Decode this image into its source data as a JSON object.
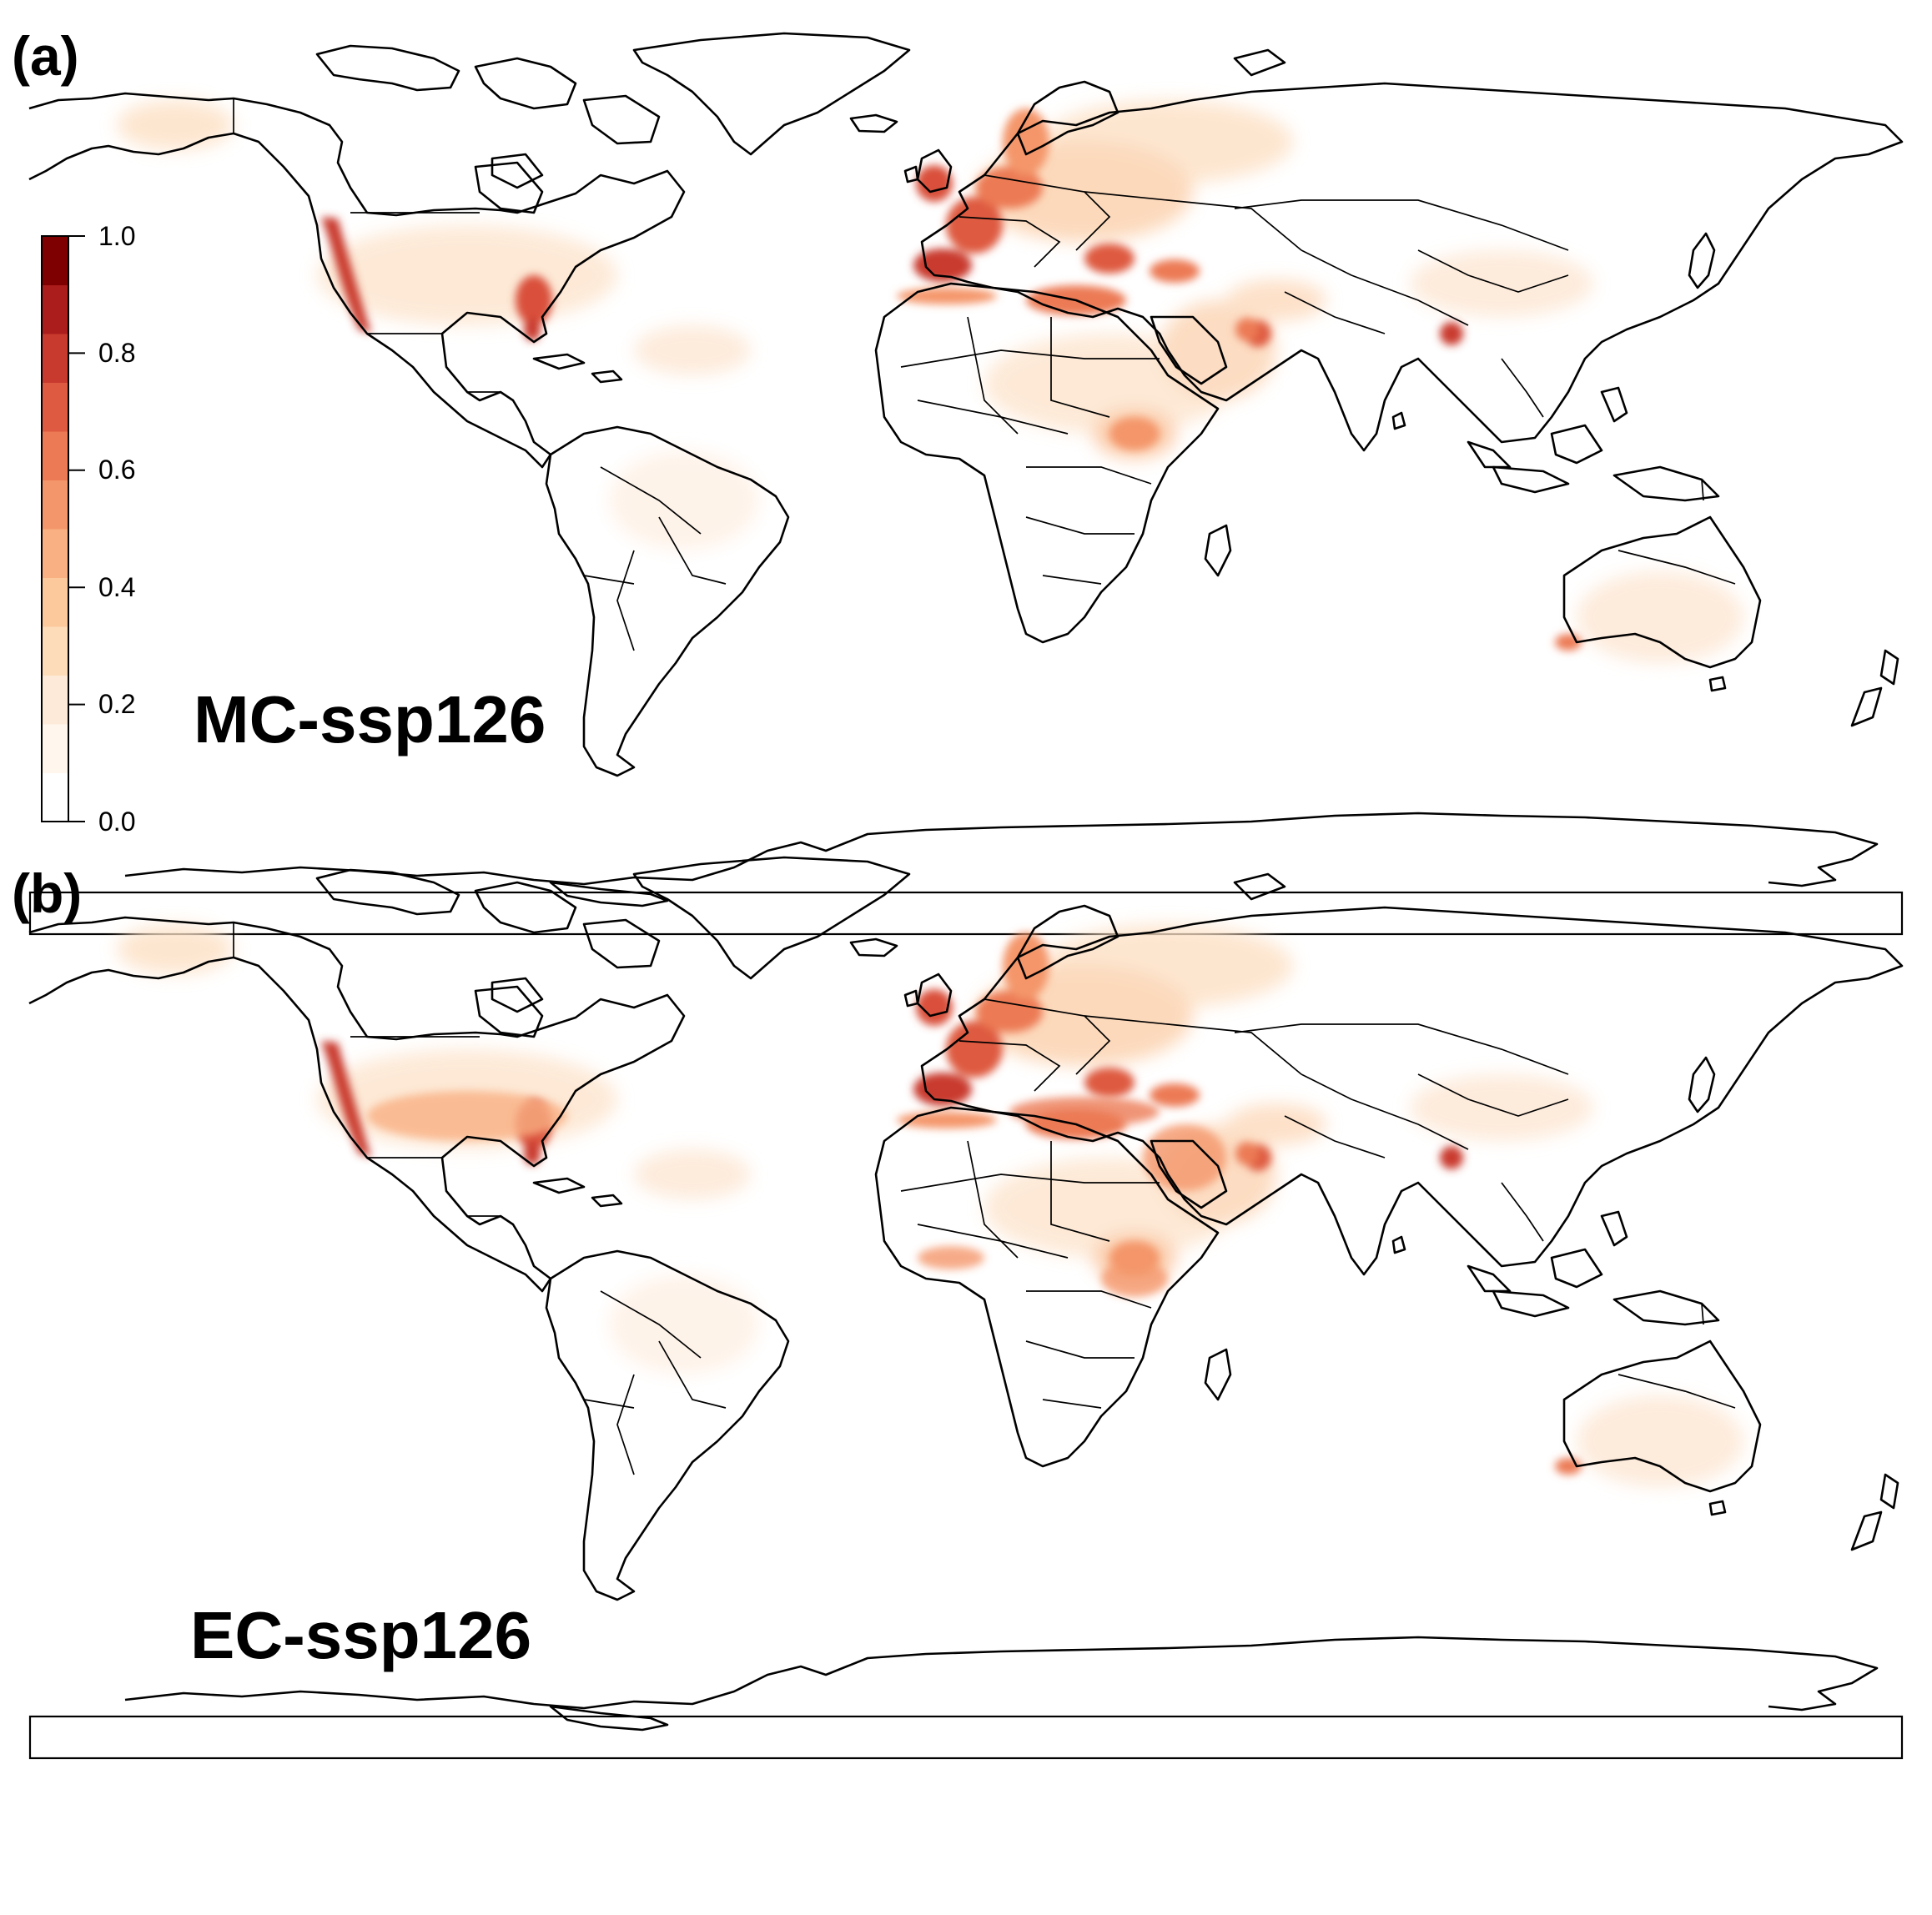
{
  "panels": [
    {
      "letter": "(a)",
      "scenario": "MC-ssp126"
    },
    {
      "letter": "(b)",
      "scenario": "EC-ssp126"
    }
  ],
  "legend": {
    "ticks": [
      "0.0",
      "0.2",
      "0.4",
      "0.6",
      "0.8",
      "1.0"
    ],
    "colors": [
      "#ffffff",
      "#fff6ee",
      "#feead8",
      "#fddcba",
      "#fcc99c",
      "#f9b083",
      "#f4966b",
      "#ec7a55",
      "#de5a40",
      "#c93a2e",
      "#ab1d1c",
      "#7f0000"
    ]
  },
  "colors": {
    "outline": "#000000",
    "background": "#ffffff"
  }
}
